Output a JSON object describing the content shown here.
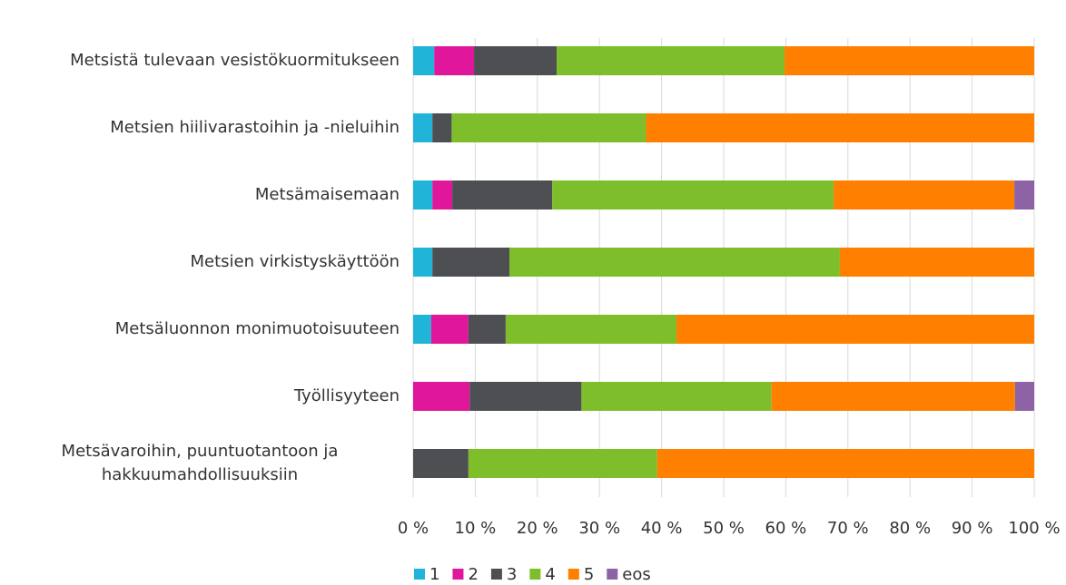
{
  "chart_data": {
    "type": "bar",
    "orientation": "horizontal",
    "stacked": true,
    "categories": [
      "Metsistä tulevaan vesistökuormitukseen",
      "Metsien hiilivarastoihin ja -nieluihin",
      "Metsämaisemaan",
      "Metsien virkistyskäyttöön",
      "Metsäluonnon monimuotoisuuteen",
      "Työllisyyteen",
      "Metsävaroihin, puuntuotantoon ja hakkuumahdollisuuksiin"
    ],
    "series": [
      {
        "name": "1",
        "color": "#1fb4d8",
        "values": [
          3.4,
          3.1,
          3.1,
          3.1,
          2.9,
          0,
          0
        ]
      },
      {
        "name": "2",
        "color": "#e0169b",
        "values": [
          6.4,
          0,
          3.2,
          0,
          6.0,
          9.1,
          0
        ]
      },
      {
        "name": "3",
        "color": "#4d4f53",
        "values": [
          13.3,
          3.1,
          16.1,
          12.4,
          6.0,
          18.0,
          8.9
        ]
      },
      {
        "name": "4",
        "color": "#7dbe2a",
        "values": [
          36.7,
          31.3,
          45.3,
          53.2,
          27.5,
          30.6,
          30.4
        ]
      },
      {
        "name": "5",
        "color": "#ff8000",
        "values": [
          40.2,
          62.5,
          29.1,
          31.3,
          57.6,
          39.2,
          60.7
        ]
      },
      {
        "name": "eos",
        "color": "#8e63a6",
        "values": [
          0,
          0,
          3.2,
          0,
          0,
          3.1,
          0
        ]
      }
    ],
    "xlim": [
      0,
      100
    ],
    "xticks": [
      {
        "value": 0,
        "label": "0 %"
      },
      {
        "value": 10,
        "label": "10 %"
      },
      {
        "value": 20,
        "label": "20 %"
      },
      {
        "value": 30,
        "label": "30 %"
      },
      {
        "value": 40,
        "label": "40 %"
      },
      {
        "value": 50,
        "label": "50 %"
      },
      {
        "value": 60,
        "label": "60 %"
      },
      {
        "value": 70,
        "label": "70 %"
      },
      {
        "value": 80,
        "label": "80 %"
      },
      {
        "value": 90,
        "label": "90 %"
      },
      {
        "value": 100,
        "label": "100 %"
      }
    ],
    "grid": true,
    "legend": "bottom"
  }
}
